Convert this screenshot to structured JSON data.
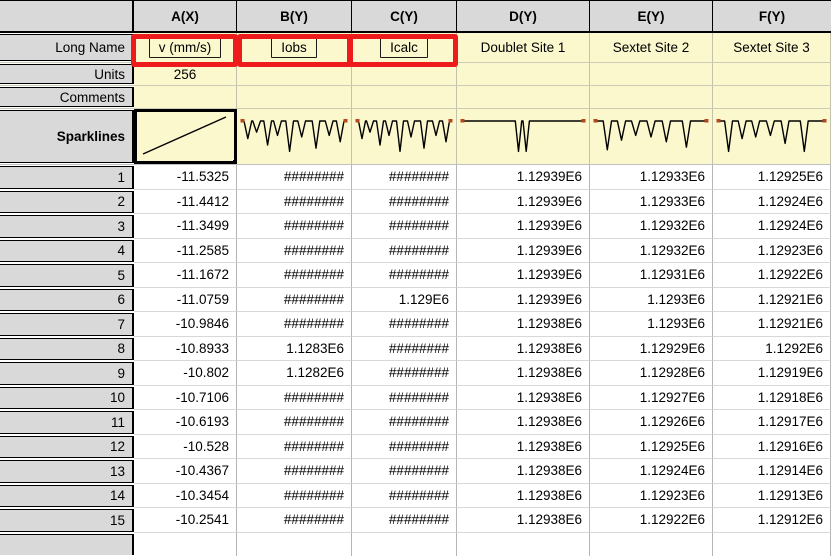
{
  "app": {
    "name": "Origin worksheet"
  },
  "table": {
    "corner_label": "",
    "column_headers": [
      "A(X)",
      "B(Y)",
      "C(Y)",
      "D(Y)",
      "E(Y)",
      "F(Y)"
    ],
    "row_labels": {
      "long_name": "Long Name",
      "units": "Units",
      "comments": "Comments",
      "sparklines": "Sparklines"
    },
    "long_names": [
      "v (mm/s)",
      "Iobs",
      "Icalc",
      "Doublet Site 1",
      "Sextet Site 2",
      "Sextet Site 3"
    ],
    "units": [
      "256",
      "",
      "",
      "",
      "",
      ""
    ],
    "comments": [
      "",
      "",
      "",
      "",
      "",
      ""
    ],
    "overflow_marker": "########",
    "rows": [
      {
        "n": "1",
        "cells": [
          "-11.5325",
          "########",
          "########",
          "1.12939E6",
          "1.12933E6",
          "1.12925E6"
        ]
      },
      {
        "n": "2",
        "cells": [
          "-11.4412",
          "########",
          "########",
          "1.12939E6",
          "1.12933E6",
          "1.12924E6"
        ]
      },
      {
        "n": "3",
        "cells": [
          "-11.3499",
          "########",
          "########",
          "1.12939E6",
          "1.12932E6",
          "1.12924E6"
        ]
      },
      {
        "n": "4",
        "cells": [
          "-11.2585",
          "########",
          "########",
          "1.12939E6",
          "1.12932E6",
          "1.12923E6"
        ]
      },
      {
        "n": "5",
        "cells": [
          "-11.1672",
          "########",
          "########",
          "1.12939E6",
          "1.12931E6",
          "1.12922E6"
        ]
      },
      {
        "n": "6",
        "cells": [
          "-11.0759",
          "########",
          "1.129E6",
          "1.12939E6",
          "1.1293E6",
          "1.12921E6"
        ]
      },
      {
        "n": "7",
        "cells": [
          "-10.9846",
          "########",
          "########",
          "1.12938E6",
          "1.1293E6",
          "1.12921E6"
        ]
      },
      {
        "n": "8",
        "cells": [
          "-10.8933",
          "1.1283E6",
          "########",
          "1.12938E6",
          "1.12929E6",
          "1.1292E6"
        ]
      },
      {
        "n": "9",
        "cells": [
          "-10.802",
          "1.1282E6",
          "########",
          "1.12938E6",
          "1.12928E6",
          "1.12919E6"
        ]
      },
      {
        "n": "10",
        "cells": [
          "-10.7106",
          "########",
          "########",
          "1.12938E6",
          "1.12927E6",
          "1.12918E6"
        ]
      },
      {
        "n": "11",
        "cells": [
          "-10.6193",
          "########",
          "########",
          "1.12938E6",
          "1.12926E6",
          "1.12917E6"
        ]
      },
      {
        "n": "12",
        "cells": [
          "-10.528",
          "########",
          "########",
          "1.12938E6",
          "1.12925E6",
          "1.12916E6"
        ]
      },
      {
        "n": "13",
        "cells": [
          "-10.4367",
          "########",
          "########",
          "1.12938E6",
          "1.12924E6",
          "1.12914E6"
        ]
      },
      {
        "n": "14",
        "cells": [
          "-10.3454",
          "########",
          "########",
          "1.12938E6",
          "1.12923E6",
          "1.12913E6"
        ]
      },
      {
        "n": "15",
        "cells": [
          "-10.2541",
          "########",
          "########",
          "1.12938E6",
          "1.12922E6",
          "1.12912E6"
        ]
      }
    ]
  },
  "annotations": {
    "box_color": "#ed1b1b",
    "highlighted_long_names": [
      "v (mm/s)",
      "Iobs",
      "Icalc"
    ]
  },
  "sparklines": {
    "line_color": "#000000",
    "marker_color": "#b5481f",
    "charts": [
      {
        "column": "A(X)",
        "type": "diagonal",
        "selected": true
      },
      {
        "column": "B(Y)",
        "type": "spectrum",
        "dips": [
          [
            0.08,
            0.55
          ],
          [
            0.16,
            0.35
          ],
          [
            0.26,
            0.75
          ],
          [
            0.35,
            0.45
          ],
          [
            0.46,
            0.95
          ],
          [
            0.57,
            0.5
          ],
          [
            0.7,
            0.85
          ],
          [
            0.82,
            0.45
          ],
          [
            0.92,
            0.65
          ]
        ]
      },
      {
        "column": "C(Y)",
        "type": "spectrum",
        "dips": [
          [
            0.08,
            0.55
          ],
          [
            0.16,
            0.35
          ],
          [
            0.26,
            0.75
          ],
          [
            0.35,
            0.45
          ],
          [
            0.46,
            0.95
          ],
          [
            0.57,
            0.5
          ],
          [
            0.7,
            0.85
          ],
          [
            0.82,
            0.45
          ],
          [
            0.92,
            0.65
          ]
        ]
      },
      {
        "column": "D(Y)",
        "type": "spectrum",
        "dips": [
          [
            0.465,
            0.95
          ],
          [
            0.525,
            0.95
          ]
        ]
      },
      {
        "column": "E(Y)",
        "type": "spectrum",
        "dips": [
          [
            0.13,
            0.9
          ],
          [
            0.25,
            0.6
          ],
          [
            0.37,
            0.45
          ],
          [
            0.5,
            0.5
          ],
          [
            0.63,
            0.65
          ],
          [
            0.8,
            0.82
          ]
        ]
      },
      {
        "column": "F(Y)",
        "type": "spectrum",
        "dips": [
          [
            0.12,
            0.95
          ],
          [
            0.24,
            0.55
          ],
          [
            0.36,
            0.5
          ],
          [
            0.49,
            0.45
          ],
          [
            0.62,
            0.7
          ],
          [
            0.79,
            0.95
          ]
        ]
      }
    ]
  },
  "colors": {
    "header_bg": "#d9d9d9",
    "meta_bg": "#fbf8cd",
    "data_bg": "#ffffff",
    "grid_dark": "#000000",
    "grid_light": "#b5b5b5"
  }
}
